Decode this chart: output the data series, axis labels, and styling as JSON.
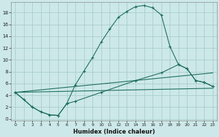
{
  "xlabel": "Humidex (Indice chaleur)",
  "bg_color": "#cce8e8",
  "grid_color": "#aacccc",
  "line_color": "#1a6b5a",
  "xlim": [
    -0.5,
    23.5
  ],
  "ylim": [
    -0.3,
    19.8
  ],
  "xticks": [
    0,
    1,
    2,
    3,
    4,
    5,
    6,
    7,
    8,
    9,
    10,
    11,
    12,
    13,
    14,
    15,
    16,
    17,
    18,
    19,
    20,
    21,
    22,
    23
  ],
  "yticks": [
    0,
    2,
    4,
    6,
    8,
    10,
    12,
    14,
    16,
    18
  ],
  "curve1_x": [
    0,
    1,
    2,
    3,
    4,
    5,
    6,
    7,
    8,
    9,
    10,
    11,
    12,
    13,
    14,
    15,
    16,
    17,
    18,
    19,
    20,
    21,
    22,
    23
  ],
  "curve1_y": [
    4.5,
    3.3,
    2.0,
    1.2,
    0.7,
    0.6,
    2.6,
    5.8,
    8.1,
    10.4,
    13.0,
    15.2,
    17.2,
    18.2,
    19.0,
    19.2,
    18.8,
    17.6,
    12.3,
    9.2,
    8.5,
    6.5,
    6.2,
    5.5
  ],
  "curve2_x": [
    0,
    2,
    3,
    4,
    5,
    6,
    7,
    10,
    14,
    17,
    19,
    20,
    21,
    22,
    23
  ],
  "curve2_y": [
    4.5,
    2.0,
    1.2,
    0.7,
    0.6,
    2.6,
    3.0,
    4.5,
    6.5,
    7.8,
    9.2,
    8.5,
    6.5,
    6.2,
    5.5
  ],
  "line3_x": [
    0,
    23
  ],
  "line3_y": [
    4.5,
    7.8
  ],
  "line4_x": [
    0,
    23
  ],
  "line4_y": [
    4.5,
    5.2
  ]
}
